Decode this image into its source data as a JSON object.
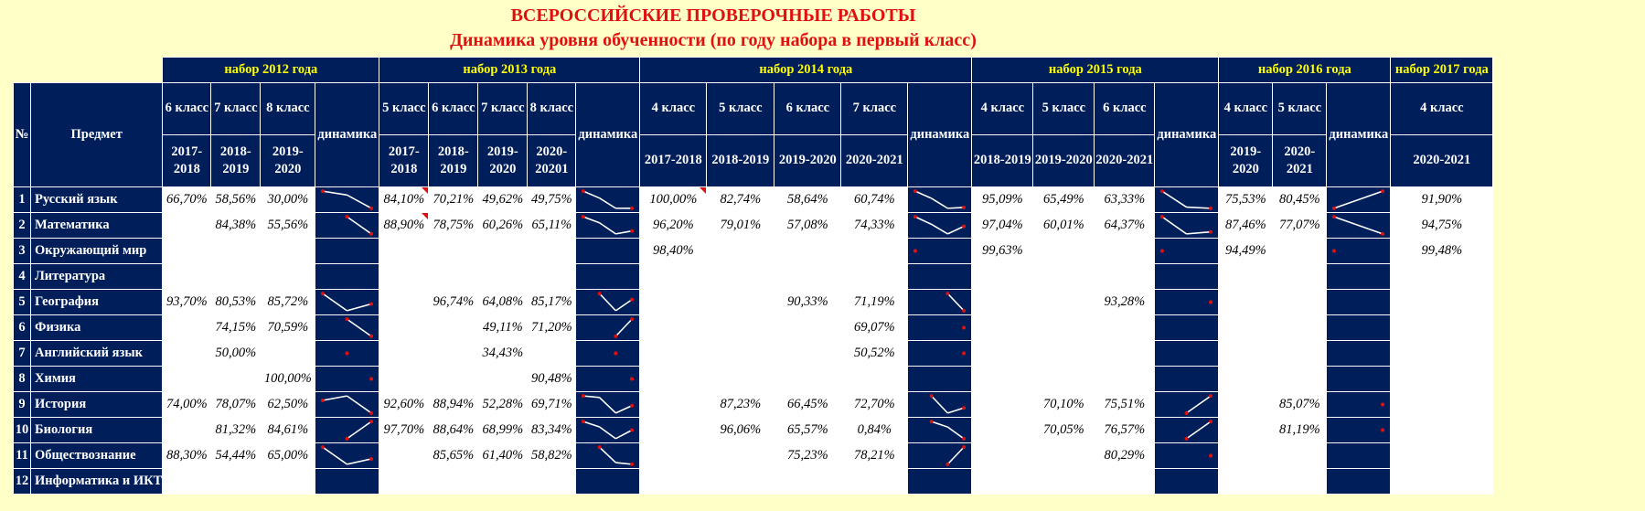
{
  "title": "ВСЕРОССИЙСКИЕ ПРОВЕРОЧНЫЕ РАБОТЫ",
  "subtitle": "Динамика уровня обученности (по году набора в первый класс)",
  "col_num": "№",
  "col_subject": "Предмет",
  "dynamics_label": "динамика",
  "colors": {
    "header_bg": "#001e5a",
    "set_label": "#ffff00",
    "title": "#e01010",
    "page_bg": "#ffffc8",
    "sparkline": "#ffffff",
    "marker": "#e01010"
  },
  "groups": [
    {
      "label": "набор 2012 года",
      "columns": [
        {
          "class": "6 класс",
          "year": "2017-2018"
        },
        {
          "class": "7 класс",
          "year": "2018-2019"
        },
        {
          "class": "8 класс",
          "year": "2019-2020"
        }
      ]
    },
    {
      "label": "набор 2013 года",
      "columns": [
        {
          "class": "5 класс",
          "year": "2017-2018"
        },
        {
          "class": "6 класс",
          "year": "2018-2019"
        },
        {
          "class": "7 класс",
          "year": "2019-2020"
        },
        {
          "class": "8 класс",
          "year": "2020-20201"
        }
      ]
    },
    {
      "label": "набор 2014 года",
      "columns": [
        {
          "class": "4 класс",
          "year": "2017-2018"
        },
        {
          "class": "5 класс",
          "year": "2018-2019"
        },
        {
          "class": "6 класс",
          "year": "2019-2020"
        },
        {
          "class": "7 класс",
          "year": "2020-2021"
        }
      ]
    },
    {
      "label": "набор 2015 года",
      "columns": [
        {
          "class": "4 класс",
          "year": "2018-2019"
        },
        {
          "class": "5 класс",
          "year": "2019-2020"
        },
        {
          "class": "6 класс",
          "year": "2020-2021"
        }
      ]
    },
    {
      "label": "набор 2016 года",
      "columns": [
        {
          "class": "4 класс",
          "year": "2019-2020"
        },
        {
          "class": "5 класс",
          "year": "2020-2021"
        }
      ]
    },
    {
      "label": "набор 2017 года",
      "columns": [
        {
          "class": "4 класс",
          "year": "2020-2021"
        }
      ],
      "no_dynamics": true
    }
  ],
  "rows": [
    {
      "num": "1",
      "subject": "Русский язык",
      "values": [
        [
          "66,70%",
          "58,56%",
          "30,00%"
        ],
        [
          "84,10%",
          "70,21%",
          "49,62%",
          "49,75%"
        ],
        [
          "100,00%",
          "82,74%",
          "58,64%",
          "60,74%"
        ],
        [
          "95,09%",
          "65,49%",
          "63,33%"
        ],
        [
          "75,53%",
          "80,45%"
        ],
        [
          "91,90%"
        ]
      ]
    },
    {
      "num": "2",
      "subject": "Математика",
      "values": [
        [
          "",
          "84,38%",
          "55,56%"
        ],
        [
          "88,90%",
          "78,75%",
          "60,26%",
          "65,11%"
        ],
        [
          "96,20%",
          "79,01%",
          "57,08%",
          "74,33%"
        ],
        [
          "97,04%",
          "60,01%",
          "64,37%"
        ],
        [
          "87,46%",
          "77,07%"
        ],
        [
          "94,75%"
        ]
      ]
    },
    {
      "num": "3",
      "subject": "Окружающий мир",
      "values": [
        [
          "",
          "",
          ""
        ],
        [
          "",
          "",
          "",
          ""
        ],
        [
          "98,40%",
          "",
          "",
          ""
        ],
        [
          "99,63%",
          "",
          ""
        ],
        [
          "94,49%",
          ""
        ],
        [
          "99,48%"
        ]
      ]
    },
    {
      "num": "4",
      "subject": "Литература",
      "values": [
        [
          "",
          "",
          ""
        ],
        [
          "",
          "",
          "",
          ""
        ],
        [
          "",
          "",
          "",
          ""
        ],
        [
          "",
          "",
          ""
        ],
        [
          "",
          ""
        ],
        [
          ""
        ]
      ]
    },
    {
      "num": "5",
      "subject": "География",
      "values": [
        [
          "93,70%",
          "80,53%",
          "85,72%"
        ],
        [
          "",
          "96,74%",
          "64,08%",
          "85,17%"
        ],
        [
          "",
          "",
          "90,33%",
          "71,19%"
        ],
        [
          "",
          "",
          "93,28%"
        ],
        [
          "",
          ""
        ],
        [
          ""
        ]
      ]
    },
    {
      "num": "6",
      "subject": "Физика",
      "values": [
        [
          "",
          "74,15%",
          "70,59%"
        ],
        [
          "",
          "",
          "49,11%",
          "71,20%"
        ],
        [
          "",
          "",
          "",
          "69,07%"
        ],
        [
          "",
          "",
          ""
        ],
        [
          "",
          ""
        ],
        [
          ""
        ]
      ]
    },
    {
      "num": "7",
      "subject": "Английский язык",
      "values": [
        [
          "",
          "50,00%",
          ""
        ],
        [
          "",
          "",
          "34,43%",
          ""
        ],
        [
          "",
          "",
          "",
          "50,52%"
        ],
        [
          "",
          "",
          ""
        ],
        [
          "",
          ""
        ],
        [
          ""
        ]
      ]
    },
    {
      "num": "8",
      "subject": "Химия",
      "values": [
        [
          "",
          "",
          "100,00%"
        ],
        [
          "",
          "",
          "",
          "90,48%"
        ],
        [
          "",
          "",
          "",
          ""
        ],
        [
          "",
          "",
          ""
        ],
        [
          "",
          ""
        ],
        [
          ""
        ]
      ]
    },
    {
      "num": "9",
      "subject": "История",
      "values": [
        [
          "74,00%",
          "78,07%",
          "62,50%"
        ],
        [
          "92,60%",
          "88,94%",
          "52,28%",
          "69,71%"
        ],
        [
          "",
          "87,23%",
          "66,45%",
          "72,70%"
        ],
        [
          "",
          "70,10%",
          "75,51%"
        ],
        [
          "",
          "85,07%"
        ],
        [
          ""
        ]
      ]
    },
    {
      "num": "10",
      "subject": "Биология",
      "values": [
        [
          "",
          "81,32%",
          "84,61%"
        ],
        [
          "97,70%",
          "88,64%",
          "68,99%",
          "83,34%"
        ],
        [
          "",
          "96,06%",
          "65,57%",
          "0,84%"
        ],
        [
          "",
          "70,05%",
          "76,57%"
        ],
        [
          "",
          "81,19%"
        ],
        [
          ""
        ]
      ]
    },
    {
      "num": "11",
      "subject": "Обществознание",
      "values": [
        [
          "88,30%",
          "54,44%",
          "65,00%"
        ],
        [
          "",
          "85,65%",
          "61,40%",
          "58,82%"
        ],
        [
          "",
          "",
          "75,23%",
          "78,21%"
        ],
        [
          "",
          "",
          "80,29%"
        ],
        [
          "",
          ""
        ],
        [
          ""
        ]
      ]
    },
    {
      "num": "12",
      "subject": "Информатика и ИКТ",
      "values": [
        [
          "",
          "",
          ""
        ],
        [
          "",
          "",
          "",
          ""
        ],
        [
          "",
          "",
          "",
          ""
        ],
        [
          "",
          "",
          ""
        ],
        [
          "",
          ""
        ],
        [
          ""
        ]
      ]
    }
  ]
}
